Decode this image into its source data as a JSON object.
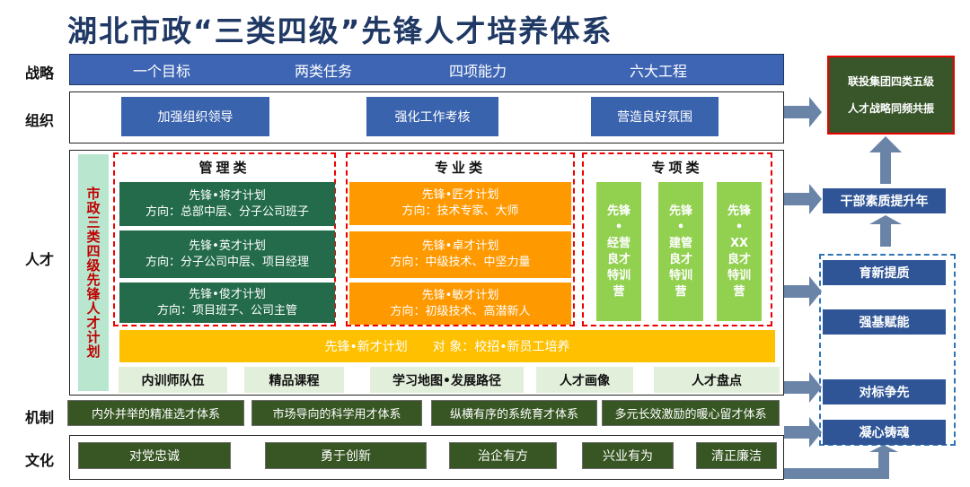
{
  "title": "湖北市政“三类四级”先锋人才培养体系",
  "row_labels": {
    "strategy": "战略",
    "org": "组织",
    "talent": "人才",
    "mechanism": "机制",
    "culture": "文化"
  },
  "strategy": [
    "一个目标",
    "两类任务",
    "四项能力",
    "六大工程"
  ],
  "org": [
    "加强组织领导",
    "强化工作考核",
    "营造良好氛围"
  ],
  "side_label": "市政三类四级先锋人才计划",
  "management": {
    "title": "管理类",
    "items": [
      [
        "先锋•将才计划",
        "方向：总部中层、分子公司班子"
      ],
      [
        "先锋•英才计划",
        "方向：分子公司中层、项目经理"
      ],
      [
        "先锋•俊才计划",
        "方向：项目班子、公司主管"
      ]
    ]
  },
  "professional": {
    "title": "专业类",
    "items": [
      [
        "先锋•匠才计划",
        "方向：技术专家、大师"
      ],
      [
        "先锋•卓才计划",
        "方向：中级技术、中坚力量"
      ],
      [
        "先锋•敏才计划",
        "方向：初级技术、高潜新人"
      ]
    ]
  },
  "special": {
    "title": "专项类",
    "items": [
      [
        "先锋",
        "•",
        "经营",
        "良才",
        "特训",
        "营"
      ],
      [
        "先锋",
        "•",
        "建管",
        "良才",
        "特训",
        "营"
      ],
      [
        "先锋",
        "•",
        "XX",
        "良才",
        "特训",
        "营"
      ]
    ]
  },
  "new_talent": "先锋•新才计划　　对 象：校招•新员工培养",
  "support": [
    "内训师队伍",
    "精品课程",
    "学习地图•发展路径",
    "人才画像",
    "人才盘点"
  ],
  "mechanism": [
    "内外并举的精准选才体系",
    "市场导向的科学用才体系",
    "纵横有序的系统育才体系",
    "多元长效激励的暖心留才体系"
  ],
  "culture": [
    "对党忠诚",
    "勇于创新",
    "治企有方",
    "兴业有为",
    "清正廉洁"
  ],
  "right": {
    "top": [
      "联投集团四类五级",
      "人才战略同频共振"
    ],
    "year": "干部素质提升年",
    "actions": [
      "育新提质",
      "强基赋能",
      "对标争先",
      "凝心铸魂"
    ]
  },
  "colors": {
    "strategy": "#3a63ae",
    "management": "#236b4a",
    "professional": "#ff9900",
    "special": "#92d050",
    "new_talent": "#ffc000",
    "mechanism": "#375623",
    "navy": "#2f5597"
  }
}
